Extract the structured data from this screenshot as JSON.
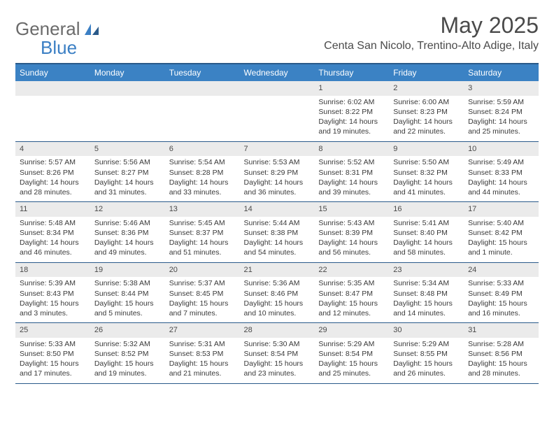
{
  "logo": {
    "text1": "General",
    "text2": "Blue"
  },
  "title": "May 2025",
  "location": "Centa San Nicolo, Trentino-Alto Adige, Italy",
  "colors": {
    "header_bg": "#3b82c4",
    "header_border": "#2a5a8a",
    "daynum_bg": "#ebebeb",
    "text": "#3a3a3a",
    "title_text": "#4a4a4a",
    "logo_gray": "#6b6b6b",
    "logo_blue": "#3b7fc4"
  },
  "dayNames": [
    "Sunday",
    "Monday",
    "Tuesday",
    "Wednesday",
    "Thursday",
    "Friday",
    "Saturday"
  ],
  "weeks": [
    [
      {
        "n": "",
        "sunrise": "",
        "sunset": "",
        "daylight": ""
      },
      {
        "n": "",
        "sunrise": "",
        "sunset": "",
        "daylight": ""
      },
      {
        "n": "",
        "sunrise": "",
        "sunset": "",
        "daylight": ""
      },
      {
        "n": "",
        "sunrise": "",
        "sunset": "",
        "daylight": ""
      },
      {
        "n": "1",
        "sunrise": "Sunrise: 6:02 AM",
        "sunset": "Sunset: 8:22 PM",
        "daylight": "Daylight: 14 hours and 19 minutes."
      },
      {
        "n": "2",
        "sunrise": "Sunrise: 6:00 AM",
        "sunset": "Sunset: 8:23 PM",
        "daylight": "Daylight: 14 hours and 22 minutes."
      },
      {
        "n": "3",
        "sunrise": "Sunrise: 5:59 AM",
        "sunset": "Sunset: 8:24 PM",
        "daylight": "Daylight: 14 hours and 25 minutes."
      }
    ],
    [
      {
        "n": "4",
        "sunrise": "Sunrise: 5:57 AM",
        "sunset": "Sunset: 8:26 PM",
        "daylight": "Daylight: 14 hours and 28 minutes."
      },
      {
        "n": "5",
        "sunrise": "Sunrise: 5:56 AM",
        "sunset": "Sunset: 8:27 PM",
        "daylight": "Daylight: 14 hours and 31 minutes."
      },
      {
        "n": "6",
        "sunrise": "Sunrise: 5:54 AM",
        "sunset": "Sunset: 8:28 PM",
        "daylight": "Daylight: 14 hours and 33 minutes."
      },
      {
        "n": "7",
        "sunrise": "Sunrise: 5:53 AM",
        "sunset": "Sunset: 8:29 PM",
        "daylight": "Daylight: 14 hours and 36 minutes."
      },
      {
        "n": "8",
        "sunrise": "Sunrise: 5:52 AM",
        "sunset": "Sunset: 8:31 PM",
        "daylight": "Daylight: 14 hours and 39 minutes."
      },
      {
        "n": "9",
        "sunrise": "Sunrise: 5:50 AM",
        "sunset": "Sunset: 8:32 PM",
        "daylight": "Daylight: 14 hours and 41 minutes."
      },
      {
        "n": "10",
        "sunrise": "Sunrise: 5:49 AM",
        "sunset": "Sunset: 8:33 PM",
        "daylight": "Daylight: 14 hours and 44 minutes."
      }
    ],
    [
      {
        "n": "11",
        "sunrise": "Sunrise: 5:48 AM",
        "sunset": "Sunset: 8:34 PM",
        "daylight": "Daylight: 14 hours and 46 minutes."
      },
      {
        "n": "12",
        "sunrise": "Sunrise: 5:46 AM",
        "sunset": "Sunset: 8:36 PM",
        "daylight": "Daylight: 14 hours and 49 minutes."
      },
      {
        "n": "13",
        "sunrise": "Sunrise: 5:45 AM",
        "sunset": "Sunset: 8:37 PM",
        "daylight": "Daylight: 14 hours and 51 minutes."
      },
      {
        "n": "14",
        "sunrise": "Sunrise: 5:44 AM",
        "sunset": "Sunset: 8:38 PM",
        "daylight": "Daylight: 14 hours and 54 minutes."
      },
      {
        "n": "15",
        "sunrise": "Sunrise: 5:43 AM",
        "sunset": "Sunset: 8:39 PM",
        "daylight": "Daylight: 14 hours and 56 minutes."
      },
      {
        "n": "16",
        "sunrise": "Sunrise: 5:41 AM",
        "sunset": "Sunset: 8:40 PM",
        "daylight": "Daylight: 14 hours and 58 minutes."
      },
      {
        "n": "17",
        "sunrise": "Sunrise: 5:40 AM",
        "sunset": "Sunset: 8:42 PM",
        "daylight": "Daylight: 15 hours and 1 minute."
      }
    ],
    [
      {
        "n": "18",
        "sunrise": "Sunrise: 5:39 AM",
        "sunset": "Sunset: 8:43 PM",
        "daylight": "Daylight: 15 hours and 3 minutes."
      },
      {
        "n": "19",
        "sunrise": "Sunrise: 5:38 AM",
        "sunset": "Sunset: 8:44 PM",
        "daylight": "Daylight: 15 hours and 5 minutes."
      },
      {
        "n": "20",
        "sunrise": "Sunrise: 5:37 AM",
        "sunset": "Sunset: 8:45 PM",
        "daylight": "Daylight: 15 hours and 7 minutes."
      },
      {
        "n": "21",
        "sunrise": "Sunrise: 5:36 AM",
        "sunset": "Sunset: 8:46 PM",
        "daylight": "Daylight: 15 hours and 10 minutes."
      },
      {
        "n": "22",
        "sunrise": "Sunrise: 5:35 AM",
        "sunset": "Sunset: 8:47 PM",
        "daylight": "Daylight: 15 hours and 12 minutes."
      },
      {
        "n": "23",
        "sunrise": "Sunrise: 5:34 AM",
        "sunset": "Sunset: 8:48 PM",
        "daylight": "Daylight: 15 hours and 14 minutes."
      },
      {
        "n": "24",
        "sunrise": "Sunrise: 5:33 AM",
        "sunset": "Sunset: 8:49 PM",
        "daylight": "Daylight: 15 hours and 16 minutes."
      }
    ],
    [
      {
        "n": "25",
        "sunrise": "Sunrise: 5:33 AM",
        "sunset": "Sunset: 8:50 PM",
        "daylight": "Daylight: 15 hours and 17 minutes."
      },
      {
        "n": "26",
        "sunrise": "Sunrise: 5:32 AM",
        "sunset": "Sunset: 8:52 PM",
        "daylight": "Daylight: 15 hours and 19 minutes."
      },
      {
        "n": "27",
        "sunrise": "Sunrise: 5:31 AM",
        "sunset": "Sunset: 8:53 PM",
        "daylight": "Daylight: 15 hours and 21 minutes."
      },
      {
        "n": "28",
        "sunrise": "Sunrise: 5:30 AM",
        "sunset": "Sunset: 8:54 PM",
        "daylight": "Daylight: 15 hours and 23 minutes."
      },
      {
        "n": "29",
        "sunrise": "Sunrise: 5:29 AM",
        "sunset": "Sunset: 8:54 PM",
        "daylight": "Daylight: 15 hours and 25 minutes."
      },
      {
        "n": "30",
        "sunrise": "Sunrise: 5:29 AM",
        "sunset": "Sunset: 8:55 PM",
        "daylight": "Daylight: 15 hours and 26 minutes."
      },
      {
        "n": "31",
        "sunrise": "Sunrise: 5:28 AM",
        "sunset": "Sunset: 8:56 PM",
        "daylight": "Daylight: 15 hours and 28 minutes."
      }
    ]
  ]
}
